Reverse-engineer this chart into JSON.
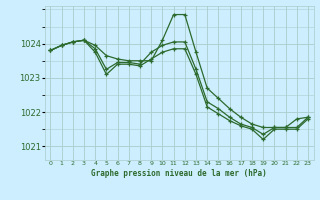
{
  "background_color": "#cceeff",
  "grid_color": "#aacccc",
  "line_color": "#2d6a2d",
  "xlabel": "Graphe pression niveau de la mer (hPa)",
  "ylim": [
    1020.6,
    1025.1
  ],
  "xlim": [
    -0.5,
    23.5
  ],
  "yticks": [
    1021,
    1022,
    1023,
    1024
  ],
  "xtick_labels": [
    "0",
    "1",
    "2",
    "3",
    "4",
    "5",
    "6",
    "7",
    "8",
    "9",
    "10",
    "11",
    "12",
    "13",
    "14",
    "15",
    "16",
    "17",
    "18",
    "19",
    "20",
    "21",
    "22",
    "23"
  ],
  "series": [
    [
      1023.8,
      1023.95,
      1024.05,
      1024.1,
      1023.95,
      1023.65,
      1023.55,
      1023.5,
      1023.5,
      1023.5,
      1024.1,
      1024.85,
      1024.85,
      1023.75,
      1022.7,
      1022.4,
      1022.1,
      1021.85,
      1021.65,
      1021.55,
      1021.55,
      1021.55,
      1021.8,
      1021.85
    ],
    [
      1023.8,
      1023.95,
      1024.05,
      1024.1,
      1023.85,
      1023.25,
      1023.45,
      1023.45,
      1023.4,
      1023.75,
      1023.95,
      1024.05,
      1024.05,
      1023.25,
      1022.3,
      1022.1,
      1021.85,
      1021.65,
      1021.55,
      1021.35,
      1021.55,
      1021.55,
      1021.55,
      1021.85
    ],
    [
      1023.8,
      1023.95,
      1024.05,
      1024.1,
      1023.75,
      1023.1,
      1023.4,
      1023.4,
      1023.35,
      1023.55,
      1023.75,
      1023.85,
      1023.85,
      1023.1,
      1022.15,
      1021.95,
      1021.75,
      1021.6,
      1021.5,
      1021.2,
      1021.5,
      1021.5,
      1021.5,
      1021.8
    ]
  ]
}
